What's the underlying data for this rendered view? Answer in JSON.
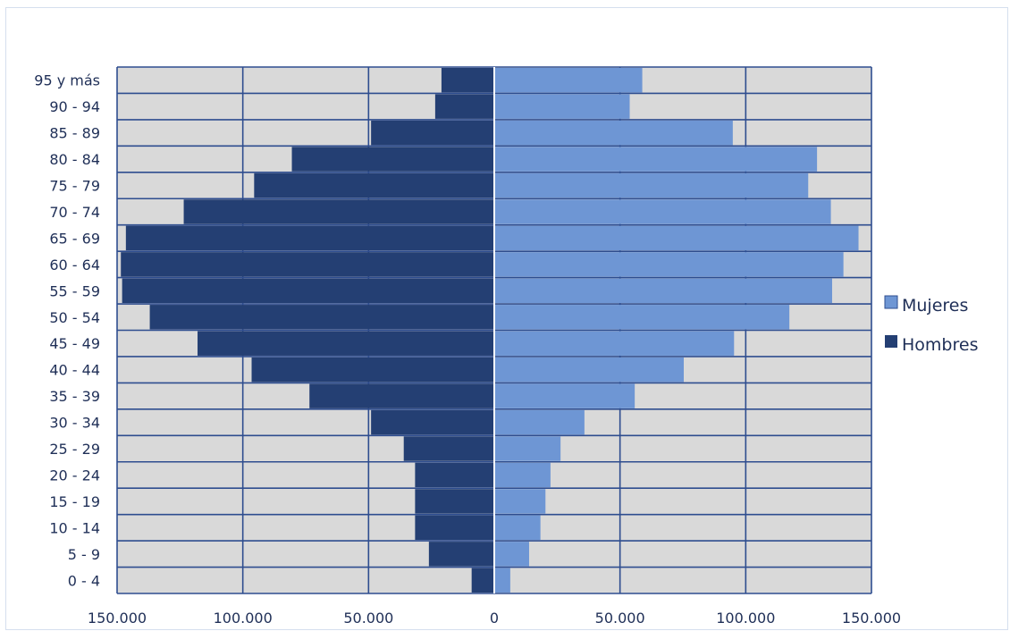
{
  "chart_data": {
    "type": "bar",
    "orientation": "horizontal",
    "categories": [
      "0 - 4",
      "5 - 9",
      "10 - 14",
      "15 - 19",
      "20 - 24",
      "25 - 29",
      "30 - 34",
      "35 - 39",
      "40 - 44",
      "45 - 49",
      "50 - 54",
      "55 - 59",
      "60 - 64",
      "65 - 69",
      "70 - 74",
      "75 - 79",
      "80 - 84",
      "85 - 89",
      "90 - 94",
      "95 y más"
    ],
    "series": [
      {
        "name": "Mujeres",
        "color": "#6e96d4",
        "side": "right",
        "values": [
          6000,
          13500,
          18000,
          20000,
          22000,
          26000,
          35500,
          55500,
          75000,
          95000,
          117000,
          134000,
          138500,
          144500,
          133500,
          124500,
          128000,
          94500,
          53500,
          58500
        ]
      },
      {
        "name": "Hombres",
        "color": "#243f73",
        "side": "left",
        "values": [
          9000,
          26000,
          31500,
          31500,
          31500,
          36000,
          49000,
          73500,
          96500,
          118000,
          137000,
          148000,
          148500,
          146500,
          123500,
          95500,
          80500,
          49000,
          23500,
          21000
        ]
      }
    ],
    "x_ticks": [
      "150.000",
      "100.000",
      "50.000",
      "0",
      "50.000",
      "100.000",
      "150.000"
    ],
    "xlim": [
      -150000,
      150000
    ],
    "background_bar_color": "#d9d9d9",
    "grid_color": "#2e4d8f",
    "legend_position": "right"
  }
}
